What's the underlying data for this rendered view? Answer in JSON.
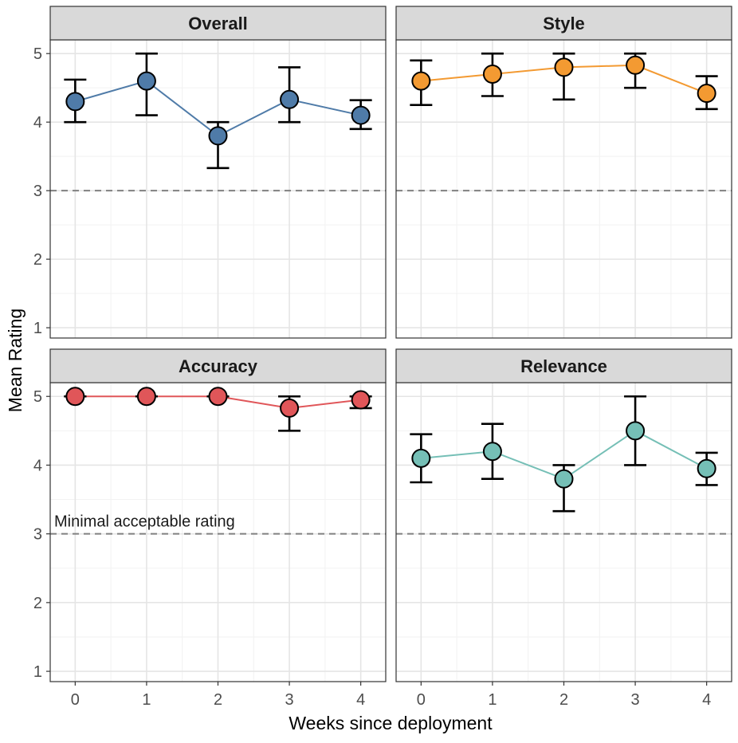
{
  "chart_data": {
    "type": "line",
    "layout": "facet-grid 2x2",
    "xlabel": "Weeks since deployment",
    "ylabel": "Mean Rating",
    "x": [
      0,
      1,
      2,
      3,
      4
    ],
    "xlim": [
      -0.35,
      4.35
    ],
    "ylim": [
      0.85,
      5.2
    ],
    "y_ticks": [
      1,
      2,
      3,
      4,
      5
    ],
    "reference_line": {
      "y": 3,
      "style": "dashed",
      "label": "Minimal acceptable rating",
      "label_panel": "Accuracy"
    },
    "grid": true,
    "legend": "none",
    "panels": [
      {
        "title": "Overall",
        "color": "#4f7ba8",
        "series": [
          {
            "x": 0,
            "mean": 4.3,
            "lower": 4.0,
            "upper": 4.62
          },
          {
            "x": 1,
            "mean": 4.6,
            "lower": 4.1,
            "upper": 5.0
          },
          {
            "x": 2,
            "mean": 3.8,
            "lower": 3.33,
            "upper": 4.0
          },
          {
            "x": 3,
            "mean": 4.33,
            "lower": 4.0,
            "upper": 4.8
          },
          {
            "x": 4,
            "mean": 4.1,
            "lower": 3.9,
            "upper": 4.32
          }
        ]
      },
      {
        "title": "Style",
        "color": "#f39a32",
        "series": [
          {
            "x": 0,
            "mean": 4.6,
            "lower": 4.25,
            "upper": 4.9
          },
          {
            "x": 1,
            "mean": 4.7,
            "lower": 4.38,
            "upper": 5.0
          },
          {
            "x": 2,
            "mean": 4.8,
            "lower": 4.33,
            "upper": 5.0
          },
          {
            "x": 3,
            "mean": 4.83,
            "lower": 4.5,
            "upper": 5.0
          },
          {
            "x": 4,
            "mean": 4.42,
            "lower": 4.19,
            "upper": 4.67
          }
        ]
      },
      {
        "title": "Accuracy",
        "color": "#e05659",
        "series": [
          {
            "x": 0,
            "mean": 5.0,
            "lower": 5.0,
            "upper": 5.0
          },
          {
            "x": 1,
            "mean": 5.0,
            "lower": 5.0,
            "upper": 5.0
          },
          {
            "x": 2,
            "mean": 5.0,
            "lower": 5.0,
            "upper": 5.0
          },
          {
            "x": 3,
            "mean": 4.83,
            "lower": 4.5,
            "upper": 5.0
          },
          {
            "x": 4,
            "mean": 4.95,
            "lower": 4.83,
            "upper": 5.0
          }
        ]
      },
      {
        "title": "Relevance",
        "color": "#75bfb6",
        "series": [
          {
            "x": 0,
            "mean": 4.1,
            "lower": 3.75,
            "upper": 4.45
          },
          {
            "x": 1,
            "mean": 4.2,
            "lower": 3.8,
            "upper": 4.6
          },
          {
            "x": 2,
            "mean": 3.8,
            "lower": 3.33,
            "upper": 4.0
          },
          {
            "x": 3,
            "mean": 4.5,
            "lower": 4.0,
            "upper": 5.0
          },
          {
            "x": 4,
            "mean": 3.95,
            "lower": 3.71,
            "upper": 4.18
          }
        ]
      }
    ]
  }
}
